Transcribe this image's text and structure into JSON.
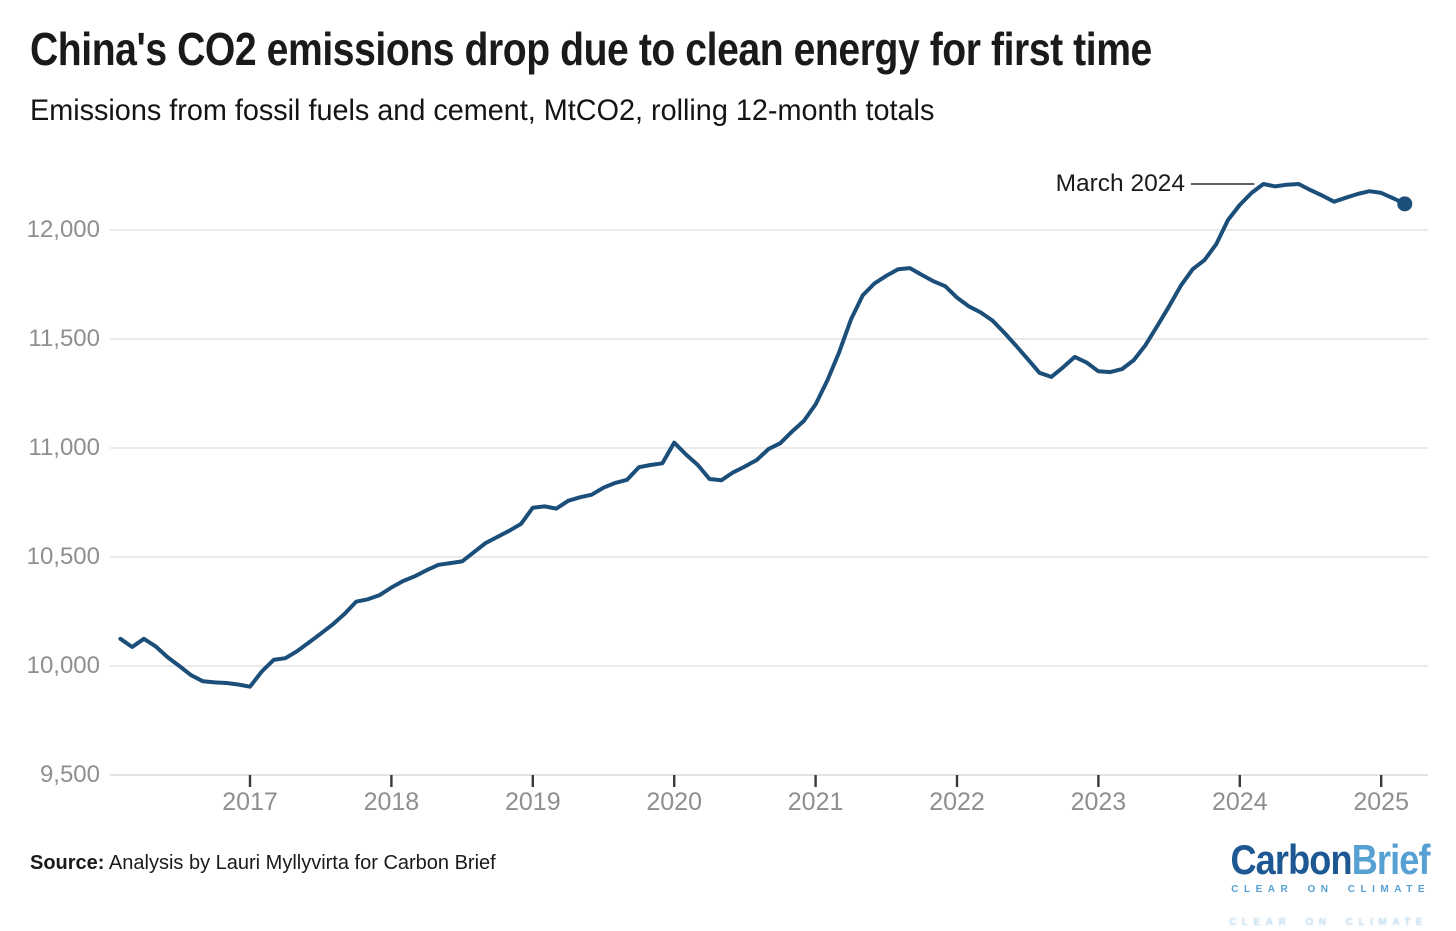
{
  "header": {
    "title": "China's CO2 emissions drop due to clean energy for first time",
    "subtitle": "Emissions from fossil fuels and cement, MtCO2, rolling 12-month totals"
  },
  "annotation": {
    "label": "March 2024"
  },
  "footer": {
    "source_label": "Source:",
    "source_text": " Analysis by Lauri Myllyvirta for Carbon Brief"
  },
  "logo": {
    "part1": "Carbon",
    "part2": "Brief",
    "tagline": "CLEAR ON CLIMATE"
  },
  "colors": {
    "line": "#1b4e79",
    "grid": "#e3e3e3",
    "grid_bottom": "#d9d9d9",
    "tick": "#3a3a3a",
    "axis_text": "#8f8f8f",
    "text": "#1a1a1a",
    "logo_dark_blue": "#1d5893",
    "logo_light_blue": "#56a0d3"
  },
  "chart_data": {
    "type": "line",
    "title": "China's CO2 emissions drop due to clean energy for first time",
    "subtitle": "Emissions from fossil fuels and cement, MtCO2, rolling 12-month totals",
    "xlabel": "",
    "ylabel": "MtCO2",
    "series_name": "China CO2 emissions from fossil fuels and cement, rolling 12-month total",
    "frequency": "monthly",
    "x_start": "2016-02",
    "x_end": "2025-03",
    "values": [
      10125,
      10087,
      10125,
      10090,
      10041,
      10000,
      9958,
      9930,
      9925,
      9922,
      9915,
      9905,
      9975,
      10028,
      10036,
      10068,
      10108,
      10148,
      10190,
      10238,
      10295,
      10306,
      10325,
      10360,
      10390,
      10412,
      10440,
      10464,
      10472,
      10480,
      10522,
      10564,
      10592,
      10620,
      10652,
      10726,
      10732,
      10722,
      10758,
      10774,
      10786,
      10818,
      10840,
      10854,
      10912,
      10922,
      10930,
      11025,
      10970,
      10922,
      10858,
      10852,
      10888,
      10915,
      10945,
      10995,
      11022,
      11075,
      11124,
      11200,
      11310,
      11440,
      11590,
      11700,
      11755,
      11790,
      11820,
      11825,
      11795,
      11765,
      11742,
      11690,
      11650,
      11622,
      11585,
      11530,
      11470,
      11408,
      11345,
      11326,
      11370,
      11418,
      11392,
      11352,
      11348,
      11362,
      11403,
      11472,
      11560,
      11650,
      11745,
      11820,
      11862,
      11935,
      12046,
      12115,
      12170,
      12211,
      12200,
      12208,
      12211,
      12183,
      12158,
      12130,
      12148,
      12165,
      12178,
      12170,
      12146,
      12120
    ],
    "x_tick_labels": [
      "2017",
      "2018",
      "2019",
      "2020",
      "2021",
      "2022",
      "2023",
      "2024",
      "2025"
    ],
    "y_ticks": [
      9500,
      10000,
      10500,
      11000,
      11500,
      12000
    ],
    "y_tick_labels": [
      "9,500",
      "10,000",
      "10,500",
      "11,000",
      "11,500",
      "12,000"
    ],
    "ylim": [
      9500,
      12300
    ],
    "grid": true,
    "legend": false,
    "annotation": {
      "label": "March 2024",
      "x": "2024-03",
      "value": 12211
    },
    "end_marker": {
      "x": "2025-03",
      "value": 12120
    },
    "line_color": "#1b4e79"
  }
}
